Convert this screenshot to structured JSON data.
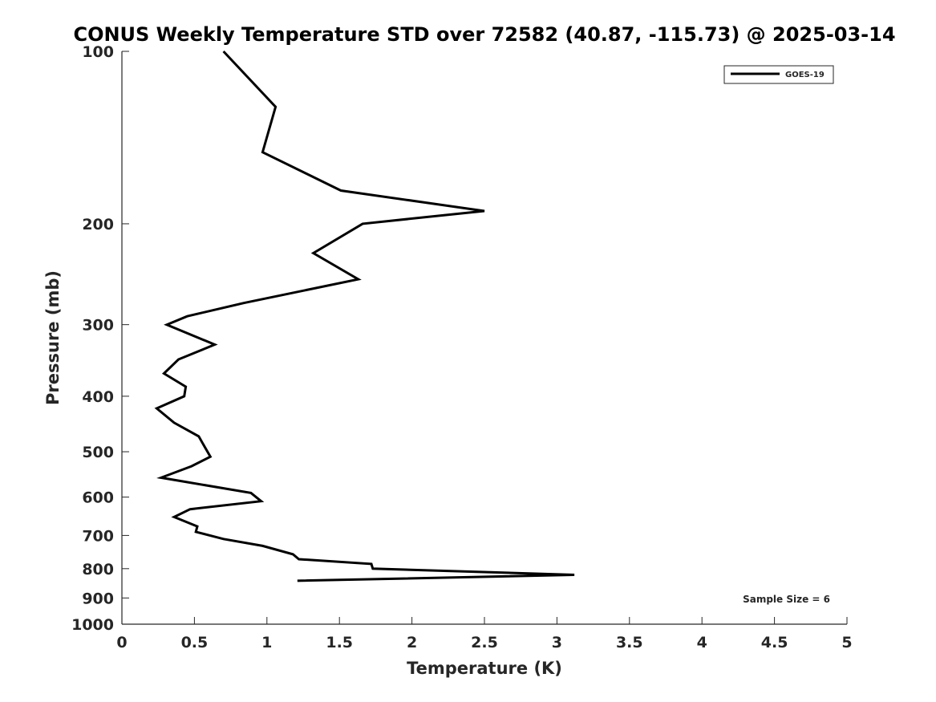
{
  "chart_data": {
    "type": "line",
    "title": "CONUS Weekly Temperature STD over 72582 (40.87, -115.73) @ 2025-03-14",
    "xlabel": "Temperature (K)",
    "ylabel": "Pressure (mb)",
    "xlim": [
      0,
      5
    ],
    "ylim": [
      100,
      1000
    ],
    "y_scale": "log",
    "y_reversed": true,
    "grid": false,
    "legend_position": "top-right",
    "x_ticks": [
      0,
      0.5,
      1,
      1.5,
      2,
      2.5,
      3,
      3.5,
      4,
      4.5,
      5
    ],
    "x_tick_labels": [
      "0",
      "0.5",
      "1",
      "1.5",
      "2",
      "2.5",
      "3",
      "3.5",
      "4",
      "4.5",
      "5"
    ],
    "y_ticks": [
      100,
      200,
      300,
      400,
      500,
      600,
      700,
      800,
      900,
      1000
    ],
    "y_tick_labels": [
      "100",
      "200",
      "300",
      "400",
      "500",
      "600",
      "700",
      "800",
      "900",
      "1000"
    ],
    "series": [
      {
        "name": "GOES-19",
        "color": "#000000",
        "points": [
          {
            "x": 0.7,
            "y": 100
          },
          {
            "x": 1.06,
            "y": 125
          },
          {
            "x": 0.97,
            "y": 150
          },
          {
            "x": 1.51,
            "y": 175
          },
          {
            "x": 2.5,
            "y": 190
          },
          {
            "x": 1.66,
            "y": 200
          },
          {
            "x": 1.32,
            "y": 225
          },
          {
            "x": 1.63,
            "y": 250
          },
          {
            "x": 0.84,
            "y": 275
          },
          {
            "x": 0.45,
            "y": 290
          },
          {
            "x": 0.31,
            "y": 300
          },
          {
            "x": 0.64,
            "y": 325
          },
          {
            "x": 0.39,
            "y": 345
          },
          {
            "x": 0.29,
            "y": 365
          },
          {
            "x": 0.44,
            "y": 385
          },
          {
            "x": 0.43,
            "y": 400
          },
          {
            "x": 0.24,
            "y": 420
          },
          {
            "x": 0.36,
            "y": 445
          },
          {
            "x": 0.53,
            "y": 470
          },
          {
            "x": 0.57,
            "y": 490
          },
          {
            "x": 0.61,
            "y": 510
          },
          {
            "x": 0.48,
            "y": 530
          },
          {
            "x": 0.27,
            "y": 555
          },
          {
            "x": 0.89,
            "y": 590
          },
          {
            "x": 0.96,
            "y": 610
          },
          {
            "x": 0.47,
            "y": 630
          },
          {
            "x": 0.36,
            "y": 650
          },
          {
            "x": 0.52,
            "y": 675
          },
          {
            "x": 0.51,
            "y": 690
          },
          {
            "x": 0.7,
            "y": 710
          },
          {
            "x": 0.97,
            "y": 730
          },
          {
            "x": 1.18,
            "y": 755
          },
          {
            "x": 1.22,
            "y": 770
          },
          {
            "x": 1.72,
            "y": 785
          },
          {
            "x": 1.73,
            "y": 800
          },
          {
            "x": 3.12,
            "y": 820
          },
          {
            "x": 1.21,
            "y": 840
          }
        ]
      }
    ],
    "annotations": [
      "Sample Size = 6"
    ]
  }
}
